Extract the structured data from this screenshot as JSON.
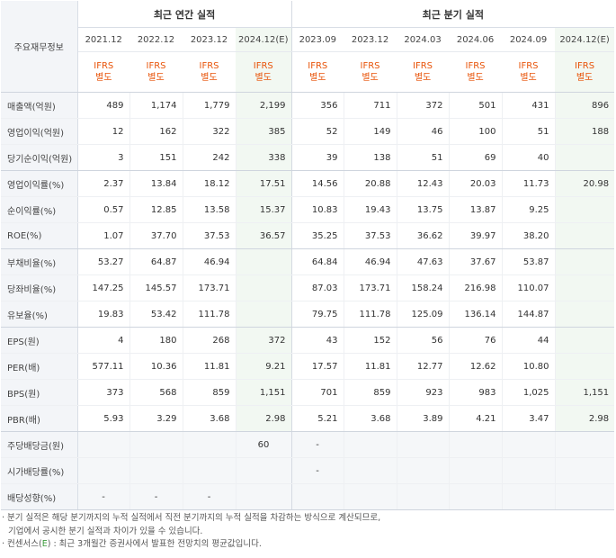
{
  "header": {
    "label": "주요재무정보",
    "annual_title": "최근 연간 실적",
    "quarter_title": "최근 분기 실적",
    "periods": [
      "2021.12",
      "2022.12",
      "2023.12",
      "2024.12(E)",
      "2023.09",
      "2023.12",
      "2024.03",
      "2024.06",
      "2024.09",
      "2024.12(E)"
    ],
    "basis_top": "IFRS",
    "basis_bottom": "별도"
  },
  "rows": [
    {
      "label": "매출액(억원)",
      "values": [
        "489",
        "1,174",
        "1,779",
        "2,199",
        "356",
        "711",
        "372",
        "501",
        "431",
        "896"
      ]
    },
    {
      "label": "영업이익(억원)",
      "values": [
        "12",
        "162",
        "322",
        "385",
        "52",
        "149",
        "46",
        "100",
        "51",
        "188"
      ]
    },
    {
      "label": "당기순이익(억원)",
      "values": [
        "3",
        "151",
        "242",
        "338",
        "39",
        "138",
        "51",
        "69",
        "40",
        ""
      ]
    },
    {
      "label": "영업이익률(%)",
      "values": [
        "2.37",
        "13.84",
        "18.12",
        "17.51",
        "14.56",
        "20.88",
        "12.43",
        "20.03",
        "11.73",
        "20.98"
      ]
    },
    {
      "label": "순이익률(%)",
      "values": [
        "0.57",
        "12.85",
        "13.58",
        "15.37",
        "10.83",
        "19.43",
        "13.75",
        "13.87",
        "9.25",
        ""
      ]
    },
    {
      "label": "ROE(%)",
      "values": [
        "1.07",
        "37.70",
        "37.53",
        "36.57",
        "35.25",
        "37.53",
        "36.62",
        "39.97",
        "38.20",
        ""
      ]
    },
    {
      "label": "부채비율(%)",
      "values": [
        "53.27",
        "64.87",
        "46.94",
        "",
        "64.84",
        "46.94",
        "47.63",
        "37.67",
        "53.87",
        ""
      ]
    },
    {
      "label": "당좌비율(%)",
      "values": [
        "147.25",
        "145.57",
        "173.71",
        "",
        "87.03",
        "173.71",
        "158.24",
        "216.98",
        "110.07",
        ""
      ]
    },
    {
      "label": "유보율(%)",
      "values": [
        "19.83",
        "53.42",
        "111.78",
        "",
        "79.75",
        "111.78",
        "125.09",
        "136.14",
        "144.87",
        ""
      ]
    },
    {
      "label": "EPS(원)",
      "values": [
        "4",
        "180",
        "268",
        "372",
        "43",
        "152",
        "56",
        "76",
        "44",
        ""
      ]
    },
    {
      "label": "PER(배)",
      "values": [
        "577.11",
        "10.36",
        "11.81",
        "9.21",
        "17.57",
        "11.81",
        "12.77",
        "12.62",
        "10.80",
        ""
      ]
    },
    {
      "label": "BPS(원)",
      "values": [
        "373",
        "568",
        "859",
        "1,151",
        "701",
        "859",
        "923",
        "983",
        "1,025",
        "1,151"
      ]
    },
    {
      "label": "PBR(배)",
      "values": [
        "5.93",
        "3.29",
        "3.68",
        "2.98",
        "5.21",
        "3.68",
        "3.89",
        "4.21",
        "3.47",
        "2.98"
      ]
    },
    {
      "label": "주당배당금(원)",
      "values": [
        "",
        "",
        "",
        "60",
        "-",
        "",
        "",
        "",
        "",
        ""
      ]
    },
    {
      "label": "시가배당률(%)",
      "values": [
        "",
        "",
        "",
        "",
        "-",
        "",
        "",
        "",
        "",
        ""
      ]
    },
    {
      "label": "배당성향(%)",
      "values": [
        "-",
        "-",
        "-",
        "",
        "",
        "",
        "",
        "",
        "",
        ""
      ]
    }
  ],
  "notes": {
    "line1": "· 분기 실적은 해당 분기까지의 누적 실적에서 직전 분기까지의 누적 실적을 차감하는 방식으로 계산되므로,",
    "line2": "기업에서 공시한 분기 실적과 차이가 있을 수 있습니다.",
    "line3_prefix": "· 컨센서스(",
    "line3_e": "E",
    "line3_suffix": ") : 최근 3개월간 증권사에서 발표한 전망치의 평균값입니다."
  }
}
